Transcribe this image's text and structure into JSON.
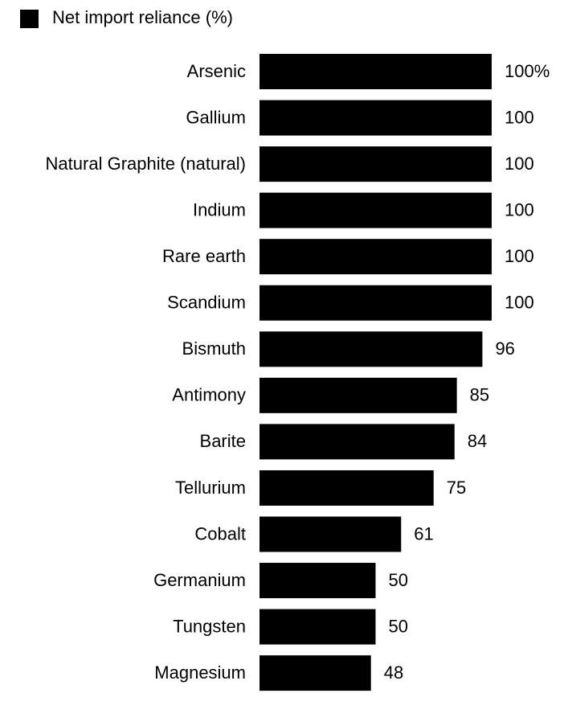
{
  "chart_data": {
    "type": "bar",
    "orientation": "horizontal",
    "categories": [
      "Arsenic",
      "Gallium",
      "Natural Graphite (natural)",
      "Indium",
      "Rare earth",
      "Scandium",
      "Bismuth",
      "Antimony",
      "Barite",
      "Tellurium",
      "Cobalt",
      "Germanium",
      "Tungsten",
      "Magnesium"
    ],
    "series": [
      {
        "name": "Net import reliance (%)",
        "color": "#000000",
        "values": [
          100,
          100,
          100,
          100,
          100,
          100,
          96,
          85,
          84,
          75,
          61,
          50,
          50,
          48
        ],
        "value_labels": [
          "100%",
          "100",
          "100",
          "100",
          "100",
          "100",
          "96",
          "85",
          "84",
          "75",
          "61",
          "50",
          "50",
          "48"
        ]
      }
    ],
    "xlim": [
      0,
      100
    ]
  }
}
